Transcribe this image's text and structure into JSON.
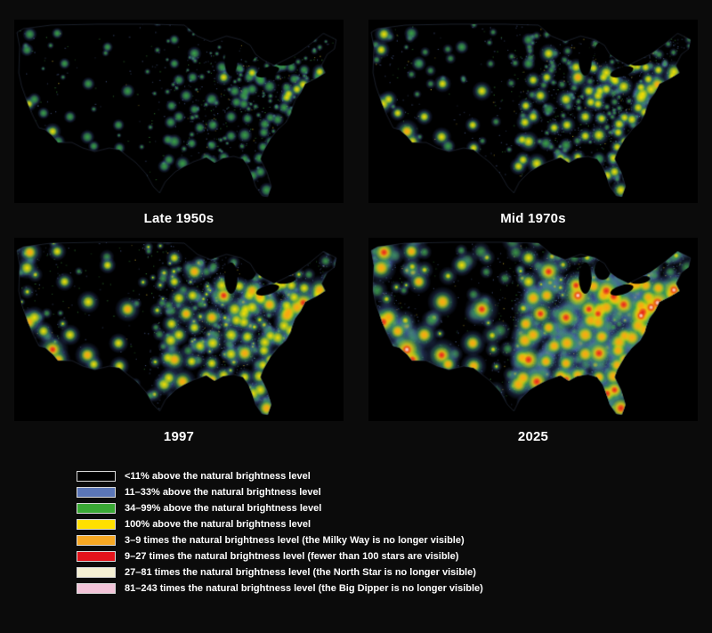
{
  "figure": {
    "background": "#0b0b0b",
    "panels": [
      {
        "id": "late-1950s",
        "label": "Late 1950s",
        "intensity": 0.38
      },
      {
        "id": "mid-1970s",
        "label": "Mid 1970s",
        "intensity": 0.62
      },
      {
        "id": "1997",
        "label": "1997",
        "intensity": 0.88
      },
      {
        "id": "2025",
        "label": "2025",
        "intensity": 1.3
      }
    ],
    "legend": [
      {
        "color": "#000000",
        "label": "<11% above the natural brightness level"
      },
      {
        "color": "#5b76b7",
        "label": "11–33% above the natural brightness level"
      },
      {
        "color": "#3aa935",
        "label": "34–99% above the natural brightness level"
      },
      {
        "color": "#ffe000",
        "label": "100% above the natural brightness level"
      },
      {
        "color": "#f7a823",
        "label": "3–9 times the natural brightness level (the Milky Way is no longer visible)"
      },
      {
        "color": "#e3131b",
        "label": "9–27 times the natural brightness level (fewer than 100 stars are visible)"
      },
      {
        "color": "#f4efd3",
        "label": "27–81 times the natural brightness level (the North Star is no longer visible)"
      },
      {
        "color": "#f2c4d8",
        "label": "81–243 times the natural brightness level (the Big Dipper is no longer visible)"
      }
    ]
  }
}
